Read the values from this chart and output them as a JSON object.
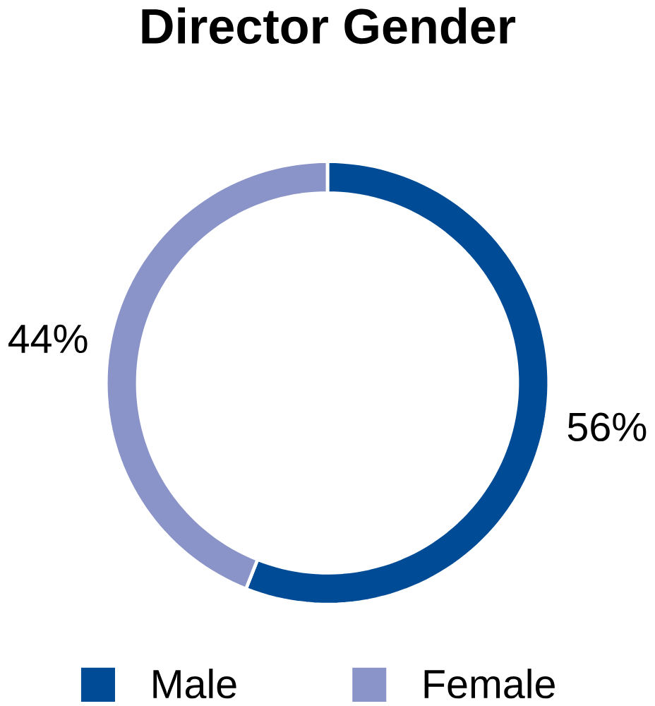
{
  "chart_data": {
    "type": "donut",
    "title": "Director Gender",
    "categories": [
      "Male",
      "Female"
    ],
    "values": [
      56,
      44
    ],
    "colors": [
      "#004b96",
      "#8b94c8"
    ],
    "value_labels": [
      "56%",
      "44%"
    ],
    "legend": "bottom"
  }
}
